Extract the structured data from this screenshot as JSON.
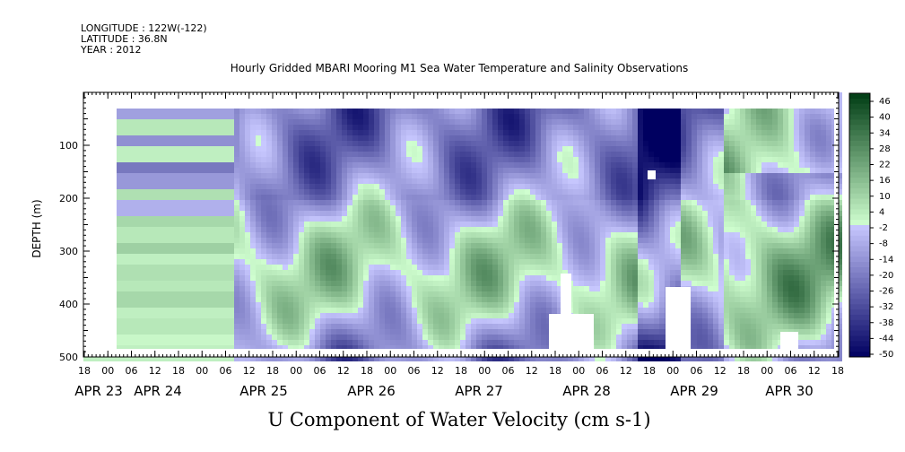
{
  "header": {
    "longitude": "LONGITUDE : 122W(-122)",
    "latitude": "LATITUDE : 36.8N",
    "year": "YEAR : 2012"
  },
  "chart_data": {
    "type": "heatmap",
    "title": "Hourly Gridded MBARI Mooring M1 Sea Water Temperature and Salinity Observations",
    "xlabel": "U Component of Water Velocity (cm s-1)",
    "ylabel": "DEPTH (m)",
    "ylim": [
      500,
      0
    ],
    "y_ticks": [
      100,
      200,
      300,
      400,
      500
    ],
    "hour_ticks": [
      "18",
      "00",
      "06",
      "12",
      "18",
      "00",
      "06",
      "12",
      "18",
      "00",
      "06",
      "12",
      "18",
      "00",
      "06",
      "12",
      "18",
      "00",
      "06",
      "12",
      "18",
      "00",
      "06",
      "12",
      "18",
      "00",
      "06",
      "12",
      "18",
      "00",
      "06",
      "12",
      "18"
    ],
    "date_labels": [
      "APR 23",
      "APR 24",
      "APR 25",
      "APR 26",
      "APR 27",
      "APR 28",
      "APR 29",
      "APR 30"
    ],
    "colorbar": {
      "min": -50,
      "max": 50,
      "labels": [
        "46",
        "40",
        "34",
        "28",
        "22",
        "16",
        "10",
        "4",
        "-2",
        "-8",
        "-14",
        "-20",
        "-26",
        "-32",
        "-38",
        "-44",
        "-50"
      ],
      "negative_dark": "#000060",
      "negative_light": "#c8c8ff",
      "positive_light": "#d0ffd0",
      "positive_dark": "#003c14"
    },
    "grid": false,
    "colorbar_placement": "right"
  }
}
